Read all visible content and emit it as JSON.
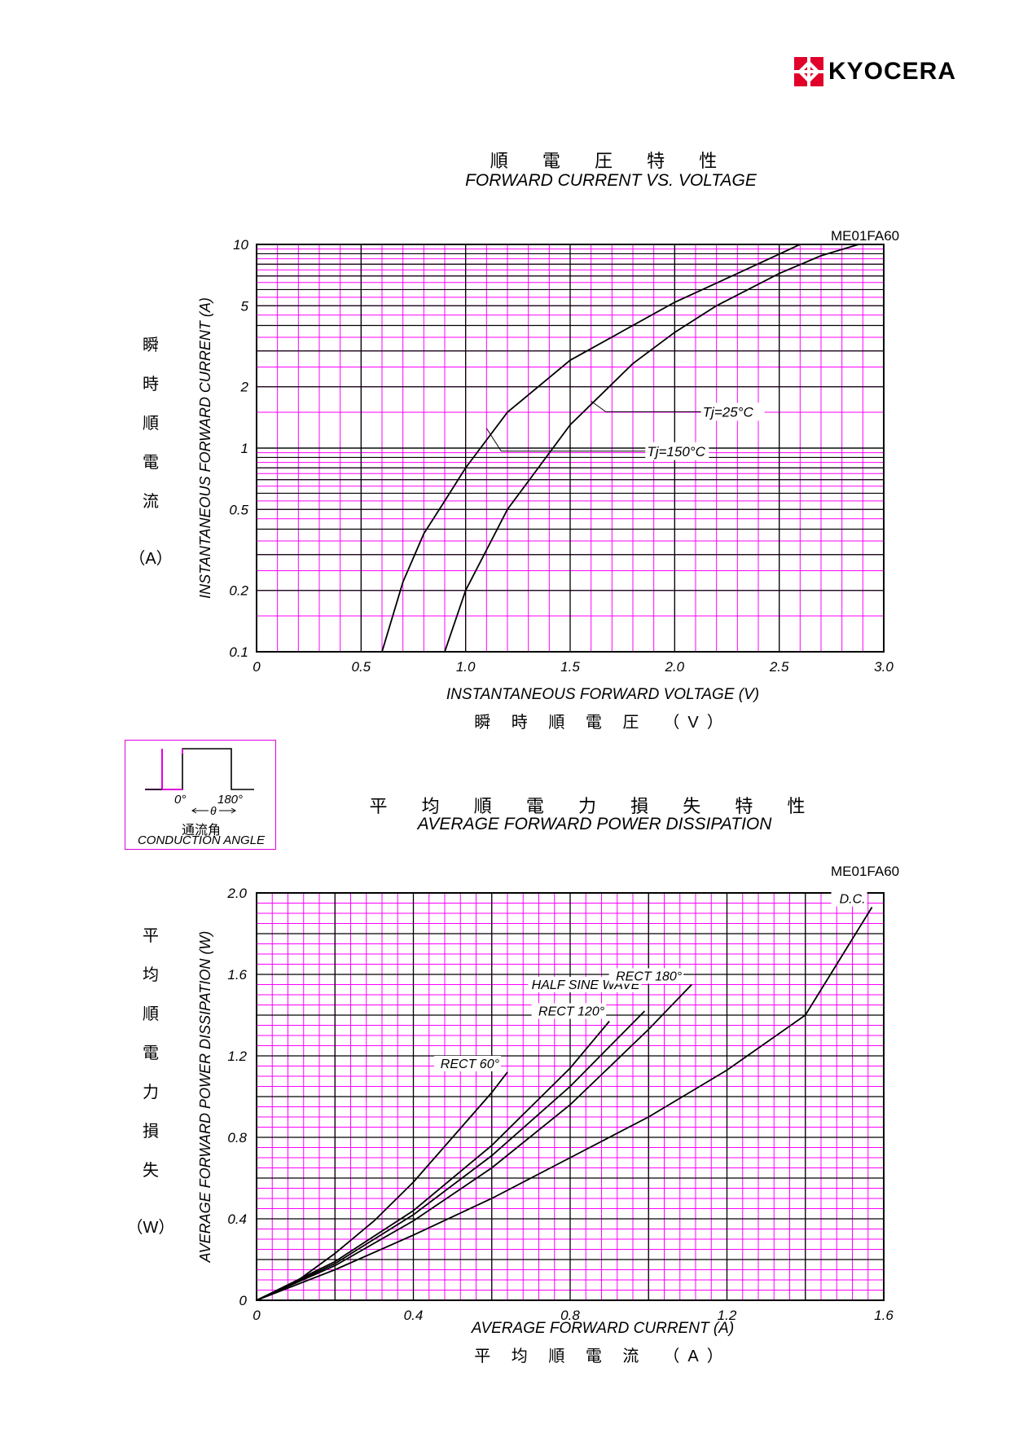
{
  "brand": {
    "name": "KYOCERA",
    "logo_icon": "kyocera-logo-icon",
    "accent": "#e0002a"
  },
  "colors": {
    "grid": "#ff00ff",
    "major_grid": "#000000",
    "curve": "#000000"
  },
  "conduction_angle": {
    "start_label": "0°",
    "end_label": "180°",
    "theta_label": "θ",
    "jp_label": "通流角",
    "en_label": "CONDUCTION ANGLE"
  },
  "chart_data": [
    {
      "type": "line",
      "title": "順 電 圧 特 性",
      "subtitle": "FORWARD CURRENT VS. VOLTAGE",
      "model": "ME01FA60",
      "xlabel": "INSTANTANEOUS FORWARD VOLTAGE (V)",
      "xlabel_jp": "瞬 時 順 電 圧　（V）",
      "ylabel": "INSTANTANEOUS FORWARD CURRENT (A)",
      "ylabel_jp": [
        "瞬",
        "時",
        "順",
        "電",
        "流"
      ],
      "yunit_jp": "（A）",
      "xlim": [
        0,
        3.0
      ],
      "ylim": [
        0.1,
        10
      ],
      "yscale": "log",
      "xticks": [
        0,
        0.5,
        1.0,
        1.5,
        2.0,
        2.5,
        3.0
      ],
      "xtick_labels": [
        "0",
        "0.5",
        "1.0",
        "1.5",
        "2.0",
        "2.5",
        "3.0"
      ],
      "yticks": [
        0.1,
        0.2,
        0.5,
        1,
        2,
        5,
        10
      ],
      "ytick_labels": [
        "0.1",
        "0.2",
        "0.5",
        "1",
        "2",
        "5",
        "10"
      ],
      "grid": true,
      "series": [
        {
          "name": "Tj=25°C",
          "x": [
            0.9,
            1.0,
            1.2,
            1.5,
            1.8,
            2.0,
            2.2,
            2.5,
            2.7,
            2.88
          ],
          "y": [
            0.1,
            0.2,
            0.5,
            1.3,
            2.6,
            3.7,
            5.0,
            7.2,
            8.8,
            10
          ]
        },
        {
          "name": "Tj=150°C",
          "x": [
            0.6,
            0.7,
            0.8,
            0.9,
            1.0,
            1.2,
            1.5,
            2.0,
            2.3,
            2.6
          ],
          "y": [
            0.1,
            0.22,
            0.38,
            0.55,
            0.8,
            1.5,
            2.7,
            5.2,
            7.2,
            10
          ]
        }
      ],
      "annotations": [
        {
          "text": "Tj=25°C",
          "series": "Tj=25°C",
          "at_x": 1.6,
          "at_y": 1.7
        },
        {
          "text": "Tj=150°C",
          "series": "Tj=150°C",
          "at_x": 1.1,
          "at_y": 1.25
        }
      ]
    },
    {
      "type": "line",
      "title": "平 均 順 電 力 損 失 特 性",
      "subtitle": "AVERAGE FORWARD POWER DISSIPATION",
      "model": "ME01FA60",
      "xlabel": "AVERAGE FORWARD CURRENT (A)",
      "xlabel_jp": "平 均 順 電 流　（A）",
      "ylabel": "AVERAGE FORWARD POWER DISSIPATION (W)",
      "ylabel_jp": [
        "平",
        "均",
        "順",
        "電",
        "力",
        "損",
        "失"
      ],
      "yunit_jp": "（W）",
      "xlim": [
        0,
        1.6
      ],
      "ylim": [
        0,
        2.0
      ],
      "yscale": "linear",
      "xticks": [
        0,
        0.4,
        0.8,
        1.2,
        1.6
      ],
      "xtick_labels": [
        "0",
        "0.4",
        "0.8",
        "1.2",
        "1.6"
      ],
      "yticks": [
        0,
        0.4,
        0.8,
        1.2,
        1.6,
        2.0
      ],
      "ytick_labels": [
        "0",
        "0.4",
        "0.8",
        "1.2",
        "1.6",
        "2.0"
      ],
      "grid": true,
      "series": [
        {
          "name": "RECT 60°",
          "x": [
            0,
            0.1,
            0.2,
            0.3,
            0.4,
            0.5,
            0.6,
            0.64
          ],
          "y": [
            0,
            0.09,
            0.23,
            0.39,
            0.58,
            0.8,
            1.02,
            1.12
          ]
        },
        {
          "name": "RECT 120°",
          "x": [
            0,
            0.2,
            0.4,
            0.6,
            0.8,
            0.9
          ],
          "y": [
            0,
            0.19,
            0.44,
            0.76,
            1.14,
            1.37
          ]
        },
        {
          "name": "HALF SINE WAVE",
          "x": [
            0,
            0.2,
            0.4,
            0.6,
            0.8,
            0.99
          ],
          "y": [
            0,
            0.18,
            0.42,
            0.71,
            1.05,
            1.42
          ]
        },
        {
          "name": "RECT 180°",
          "x": [
            0,
            0.2,
            0.4,
            0.6,
            0.8,
            1.0,
            1.11
          ],
          "y": [
            0,
            0.17,
            0.39,
            0.65,
            0.96,
            1.33,
            1.55
          ]
        },
        {
          "name": "D.C.",
          "x": [
            0,
            0.2,
            0.4,
            0.6,
            0.8,
            1.0,
            1.2,
            1.4,
            1.57
          ],
          "y": [
            0,
            0.15,
            0.32,
            0.5,
            0.7,
            0.9,
            1.13,
            1.4,
            1.93
          ]
        }
      ],
      "annotations": [
        {
          "text": "RECT 60°",
          "series": "RECT 60°",
          "at_x": 0.64,
          "at_y": 1.12
        },
        {
          "text": "RECT 120°",
          "series": "RECT 120°",
          "at_x": 0.9,
          "at_y": 1.37
        },
        {
          "text": "HALF SINE WAVE",
          "series": "HALF SINE WAVE",
          "at_x": 0.99,
          "at_y": 1.42
        },
        {
          "text": "RECT 180°",
          "series": "RECT 180°",
          "at_x": 1.11,
          "at_y": 1.55
        },
        {
          "text": "D.C.",
          "series": "D.C.",
          "at_x": 1.57,
          "at_y": 1.93
        }
      ]
    }
  ]
}
